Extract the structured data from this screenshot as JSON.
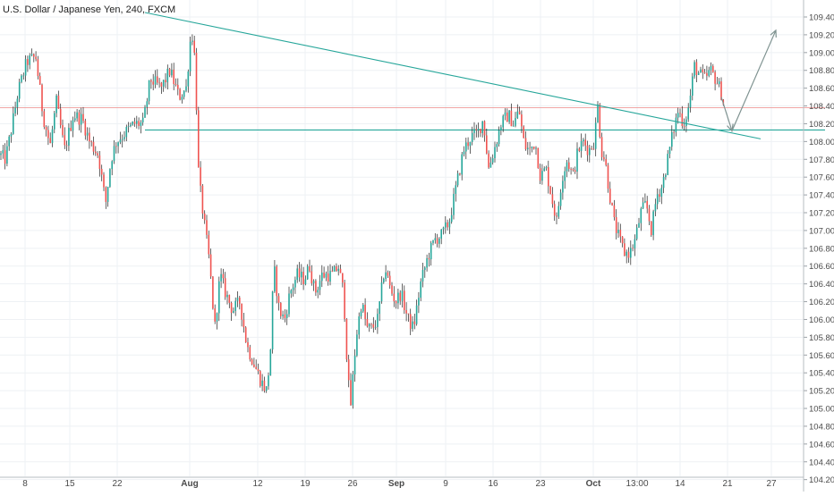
{
  "header": {
    "title": "U.S. Dollar / Japanese Yen, 240, FXCM"
  },
  "colors": {
    "up": "#26a69a",
    "down": "#ef5350",
    "wick": "#222222",
    "horizontal_support": "#26a69a",
    "horizontal_resistance": "#ef9a9a",
    "trendline": "#26a69a",
    "projection_arrow": "#7f9391",
    "grid": "#eef1f4",
    "axis_text": "#4a4a4a"
  },
  "chart_data": {
    "type": "candlestick",
    "title": "U.S. Dollar / Japanese Yen, 240, FXCM",
    "y_axis": {
      "position": "right",
      "range": [
        104.2,
        109.5
      ],
      "tick_labels": [
        "109.400",
        "109.200",
        "109.000",
        "108.800",
        "108.600",
        "108.400",
        "108.200",
        "108.000",
        "107.800",
        "107.600",
        "107.400",
        "107.200",
        "107.000",
        "106.800",
        "106.600",
        "106.400",
        "106.200",
        "106.000",
        "105.800",
        "105.600",
        "105.400",
        "105.200",
        "105.000",
        "104.800",
        "104.600",
        "104.400",
        "104.200"
      ],
      "tick_values": [
        109.4,
        109.2,
        109.0,
        108.8,
        108.6,
        108.4,
        108.2,
        108.0,
        107.8,
        107.6,
        107.4,
        107.2,
        107.0,
        106.8,
        106.6,
        106.4,
        106.2,
        106.0,
        105.8,
        105.6,
        105.4,
        105.2,
        105.0,
        104.8,
        104.6,
        104.4,
        104.2
      ]
    },
    "x_axis": {
      "tick_labels": [
        "8",
        "15",
        "22",
        "Aug",
        "12",
        "19",
        "26",
        "Sep",
        "9",
        "16",
        "23",
        "Oct",
        "13:00",
        "14",
        "21",
        "27"
      ],
      "bold_labels": [
        "Aug",
        "Sep",
        "Oct"
      ]
    },
    "grid": true,
    "anchor_points": [
      [
        0,
        107.85
      ],
      [
        6,
        107.8
      ],
      [
        12,
        108.1
      ],
      [
        20,
        108.55
      ],
      [
        30,
        108.9
      ],
      [
        40,
        108.95
      ],
      [
        48,
        108.3
      ],
      [
        56,
        107.95
      ],
      [
        63,
        108.45
      ],
      [
        72,
        107.9
      ],
      [
        82,
        108.3
      ],
      [
        92,
        108.25
      ],
      [
        100,
        108.0
      ],
      [
        110,
        107.85
      ],
      [
        118,
        107.3
      ],
      [
        124,
        107.8
      ],
      [
        130,
        108.0
      ],
      [
        140,
        108.1
      ],
      [
        150,
        108.2
      ],
      [
        160,
        108.2
      ],
      [
        168,
        108.7
      ],
      [
        180,
        108.6
      ],
      [
        190,
        108.8
      ],
      [
        200,
        108.5
      ],
      [
        208,
        108.6
      ],
      [
        214,
        109.28
      ],
      [
        218,
        108.9
      ],
      [
        222,
        107.6
      ],
      [
        228,
        107.1
      ],
      [
        234,
        106.65
      ],
      [
        240,
        105.9
      ],
      [
        246,
        106.5
      ],
      [
        252,
        106.3
      ],
      [
        260,
        106.1
      ],
      [
        268,
        106.2
      ],
      [
        276,
        105.7
      ],
      [
        284,
        105.5
      ],
      [
        292,
        105.3
      ],
      [
        298,
        105.2
      ],
      [
        302,
        105.6
      ],
      [
        306,
        106.6
      ],
      [
        312,
        106.1
      ],
      [
        318,
        106.0
      ],
      [
        324,
        106.3
      ],
      [
        332,
        106.5
      ],
      [
        340,
        106.45
      ],
      [
        346,
        106.6
      ],
      [
        352,
        106.3
      ],
      [
        360,
        106.5
      ],
      [
        366,
        106.5
      ],
      [
        372,
        106.5
      ],
      [
        378,
        106.6
      ],
      [
        384,
        106.3
      ],
      [
        389,
        105.3
      ],
      [
        392,
        105.05
      ],
      [
        398,
        105.8
      ],
      [
        404,
        106.2
      ],
      [
        410,
        105.9
      ],
      [
        416,
        105.9
      ],
      [
        422,
        106.0
      ],
      [
        430,
        106.6
      ],
      [
        436,
        106.35
      ],
      [
        442,
        106.2
      ],
      [
        448,
        106.3
      ],
      [
        456,
        106.0
      ],
      [
        462,
        105.9
      ],
      [
        470,
        106.4
      ],
      [
        478,
        106.7
      ],
      [
        486,
        106.9
      ],
      [
        494,
        106.95
      ],
      [
        502,
        107.1
      ],
      [
        510,
        107.5
      ],
      [
        518,
        107.9
      ],
      [
        526,
        108.05
      ],
      [
        534,
        108.1
      ],
      [
        540,
        108.25
      ],
      [
        546,
        107.7
      ],
      [
        552,
        107.9
      ],
      [
        560,
        108.2
      ],
      [
        568,
        108.3
      ],
      [
        574,
        108.2
      ],
      [
        580,
        108.35
      ],
      [
        586,
        107.95
      ],
      [
        592,
        107.9
      ],
      [
        598,
        108.0
      ],
      [
        604,
        107.6
      ],
      [
        610,
        107.7
      ],
      [
        616,
        107.4
      ],
      [
        622,
        107.1
      ],
      [
        628,
        107.6
      ],
      [
        634,
        107.8
      ],
      [
        640,
        107.6
      ],
      [
        646,
        107.9
      ],
      [
        652,
        108.0
      ],
      [
        658,
        107.9
      ],
      [
        664,
        108.0
      ],
      [
        668,
        108.4
      ],
      [
        672,
        107.9
      ],
      [
        676,
        107.8
      ],
      [
        680,
        107.5
      ],
      [
        686,
        107.1
      ],
      [
        692,
        106.9
      ],
      [
        698,
        106.75
      ],
      [
        704,
        106.75
      ],
      [
        710,
        106.9
      ],
      [
        716,
        107.2
      ],
      [
        722,
        107.3
      ],
      [
        728,
        107.0
      ],
      [
        734,
        107.4
      ],
      [
        740,
        107.5
      ],
      [
        746,
        107.8
      ],
      [
        752,
        108.1
      ],
      [
        758,
        108.35
      ],
      [
        764,
        108.2
      ],
      [
        770,
        108.4
      ],
      [
        776,
        108.85
      ],
      [
        782,
        108.75
      ],
      [
        788,
        108.7
      ],
      [
        794,
        108.8
      ],
      [
        800,
        108.7
      ],
      [
        806,
        108.55
      ],
      [
        810,
        108.35
      ]
    ],
    "x_tick_positions": [
      28,
      78,
      131,
      212,
      288,
      341,
      394,
      443,
      498,
      551,
      604,
      663,
      712,
      760,
      813,
      862
    ],
    "horizontal_lines": [
      {
        "price": 108.13,
        "style": "support",
        "from_x": 162,
        "to_x": 922
      },
      {
        "price": 108.38,
        "style": "resistance",
        "from_x": 0,
        "to_x": 922
      }
    ],
    "trendline": {
      "x1": 162,
      "price1": 109.45,
      "x2": 850,
      "price2": 108.03
    },
    "projection": {
      "points": [
        [
          806,
          108.5
        ],
        [
          818,
          108.12
        ],
        [
          867,
          109.25
        ]
      ]
    }
  }
}
